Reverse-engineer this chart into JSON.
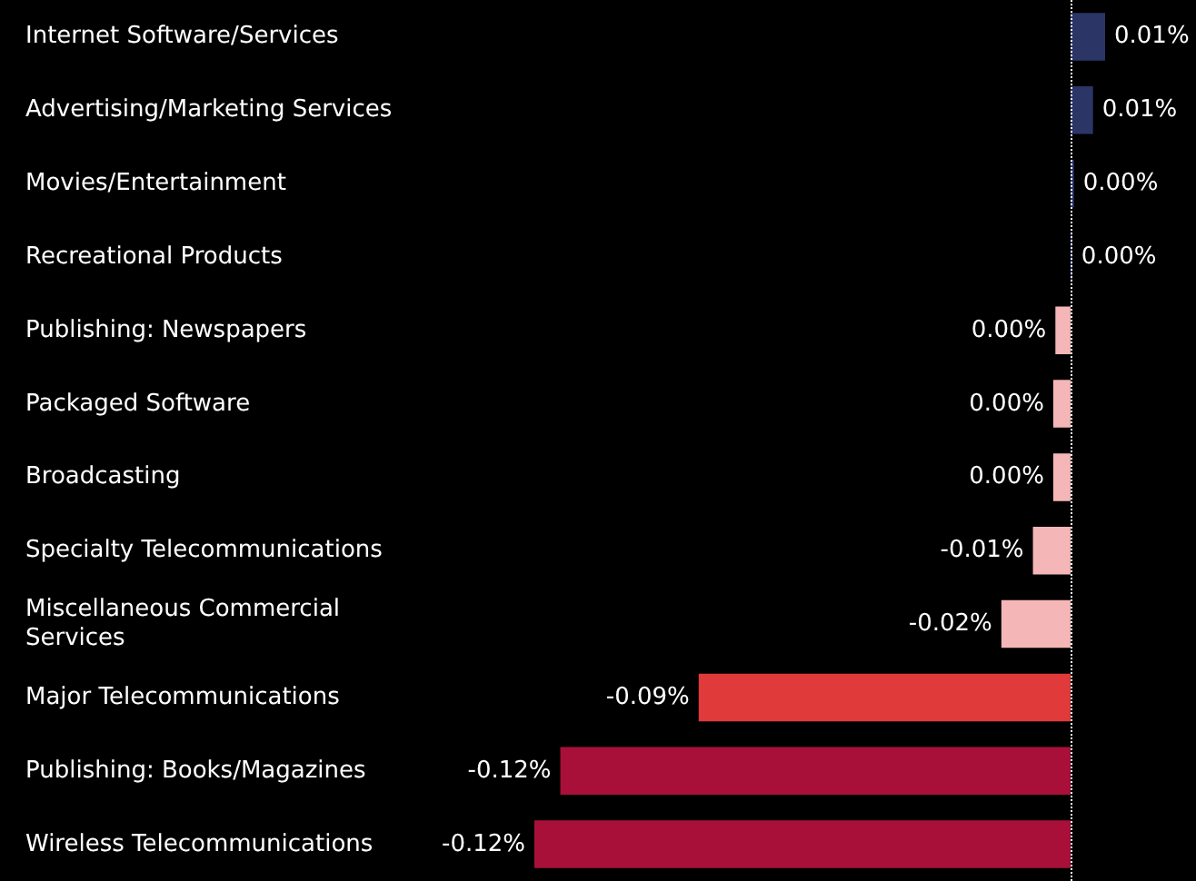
{
  "chart_data": {
    "type": "bar",
    "orientation": "horizontal",
    "categories": [
      "Internet Software/Services",
      "Advertising/Marketing Services",
      "Movies/Entertainment",
      "Recreational Products",
      "Publishing: Newspapers",
      "Packaged Software",
      "Broadcasting",
      "Specialty Telecommunications",
      "Miscellaneous Commercial Services",
      "Major Telecommunications",
      "Publishing: Books/Magazines",
      "Wireless Telecommunications"
    ],
    "values": [
      0.008,
      0.0052,
      0.0008,
      0.0004,
      -0.0035,
      -0.004,
      -0.004,
      -0.0087,
      -0.016,
      -0.086,
      -0.118,
      -0.124
    ],
    "value_labels": [
      "0.01%",
      "0.01%",
      "0.00%",
      "0.00%",
      "0.00%",
      "0.00%",
      "0.00%",
      "-0.01%",
      "-0.02%",
      "-0.09%",
      "-0.12%",
      "-0.12%"
    ],
    "colors": [
      "#2b3566",
      "#2b3566",
      "#2b3566",
      "#2b3566",
      "#f4b6b6",
      "#f4b6b6",
      "#f4b6b6",
      "#f4b6b6",
      "#f4b6b6",
      "#e03a3a",
      "#a8103a",
      "#a8103a"
    ],
    "ref_lines": [
      {
        "axis": "x",
        "value": 0,
        "color": "#ffffff",
        "line_style": "dotted"
      }
    ]
  }
}
